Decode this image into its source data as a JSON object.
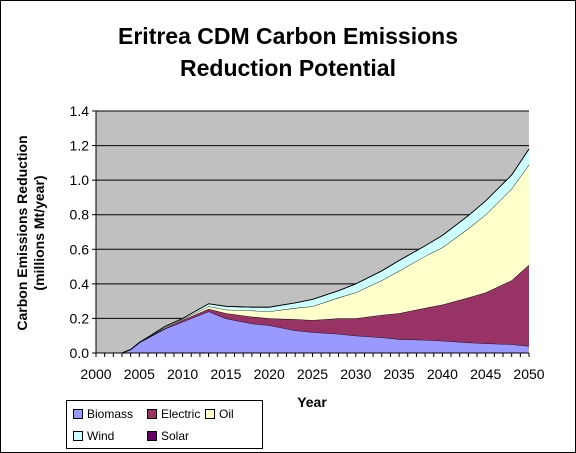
{
  "chart_data": {
    "type": "area",
    "title_line1": "Eritrea CDM Carbon Emissions",
    "title_line2": "Reduction Potential",
    "xlabel": "Year",
    "ylabel_line1": "Carbon Emissions Reduction",
    "ylabel_line2": "(millions Mt/year)",
    "xlim": [
      2000,
      2050
    ],
    "ylim": [
      0,
      1.4
    ],
    "x_ticks": [
      2000,
      2005,
      2010,
      2015,
      2020,
      2025,
      2030,
      2035,
      2040,
      2045,
      2050
    ],
    "y_ticks": [
      "0.0",
      "0.2",
      "0.4",
      "0.6",
      "0.8",
      "1.0",
      "1.2",
      "1.4"
    ],
    "y_tick_values": [
      0,
      0.2,
      0.4,
      0.6,
      0.8,
      1.0,
      1.2,
      1.4
    ],
    "stacked": true,
    "grid": "horizontal",
    "legend_position": "bottom-left",
    "x": [
      2000,
      2003,
      2004,
      2005,
      2008,
      2010,
      2013,
      2015,
      2018,
      2020,
      2023,
      2025,
      2028,
      2030,
      2033,
      2035,
      2038,
      2040,
      2043,
      2045,
      2048,
      2050
    ],
    "series": [
      {
        "name": "Biomass",
        "color": "#9999ff",
        "values": [
          0,
          0,
          0.02,
          0.06,
          0.14,
          0.18,
          0.24,
          0.2,
          0.17,
          0.16,
          0.13,
          0.12,
          0.11,
          0.1,
          0.09,
          0.08,
          0.075,
          0.07,
          0.06,
          0.055,
          0.05,
          0.04
        ]
      },
      {
        "name": "Electric",
        "color": "#993366",
        "values": [
          0,
          0,
          0,
          0,
          0.005,
          0.01,
          0.015,
          0.03,
          0.04,
          0.04,
          0.065,
          0.07,
          0.09,
          0.1,
          0.13,
          0.15,
          0.185,
          0.21,
          0.26,
          0.295,
          0.37,
          0.47
        ]
      },
      {
        "name": "Oil",
        "color": "#ffffcc",
        "values": [
          0,
          0,
          0,
          0,
          0.005,
          0.005,
          0.015,
          0.02,
          0.035,
          0.04,
          0.065,
          0.08,
          0.12,
          0.15,
          0.2,
          0.245,
          0.3,
          0.33,
          0.4,
          0.45,
          0.53,
          0.58
        ]
      },
      {
        "name": "Wind",
        "color": "#ccffff",
        "values": [
          0,
          0,
          0,
          0,
          0.005,
          0.005,
          0.015,
          0.02,
          0.02,
          0.025,
          0.03,
          0.04,
          0.04,
          0.05,
          0.055,
          0.06,
          0.06,
          0.07,
          0.075,
          0.08,
          0.08,
          0.09
        ]
      },
      {
        "name": "Solar",
        "color": "#660066",
        "values": [
          0,
          0,
          0,
          0,
          0,
          0,
          0,
          0,
          0,
          0,
          0,
          0,
          0,
          0,
          0,
          0,
          0,
          0,
          0,
          0,
          0,
          0
        ]
      }
    ]
  },
  "colors": {
    "plot_background": "#c0c0c0",
    "gridline": "#000000"
  }
}
